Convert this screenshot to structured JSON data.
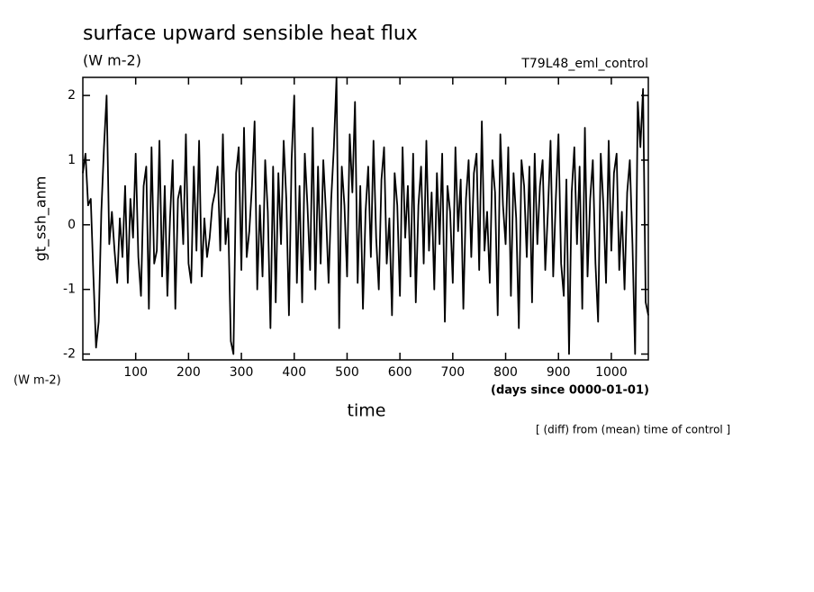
{
  "chart_data": {
    "type": "line",
    "title": "surface upward sensible heat flux",
    "units": "(W m-2)",
    "run_label": "T79L48_eml_control",
    "ylabel": "gt_ssh_anm",
    "yunits": "(W m-2)",
    "xunits": "(days since 0000-01-01)",
    "xlabel": "time",
    "note": "[ (diff) from (mean) time of control ]",
    "xlim": [
      0,
      1070
    ],
    "ylim": [
      -2.09,
      2.28
    ],
    "xticks": [
      100,
      200,
      300,
      400,
      500,
      600,
      700,
      800,
      900,
      1000
    ],
    "yticks": [
      -2,
      -1,
      0,
      1,
      2
    ],
    "grid": false,
    "x": [
      0,
      5,
      10,
      15,
      20,
      25,
      30,
      35,
      40,
      45,
      50,
      55,
      60,
      65,
      70,
      75,
      80,
      85,
      90,
      95,
      100,
      105,
      110,
      115,
      120,
      125,
      130,
      135,
      140,
      145,
      150,
      155,
      160,
      165,
      170,
      175,
      180,
      185,
      190,
      195,
      200,
      205,
      210,
      215,
      220,
      225,
      230,
      235,
      240,
      245,
      250,
      255,
      260,
      265,
      270,
      275,
      280,
      285,
      290,
      295,
      300,
      305,
      310,
      315,
      320,
      325,
      330,
      335,
      340,
      345,
      350,
      355,
      360,
      365,
      370,
      375,
      380,
      385,
      390,
      395,
      400,
      405,
      410,
      415,
      420,
      425,
      430,
      435,
      440,
      445,
      450,
      455,
      460,
      465,
      470,
      475,
      480,
      485,
      490,
      495,
      500,
      505,
      510,
      515,
      520,
      525,
      530,
      535,
      540,
      545,
      550,
      555,
      560,
      565,
      570,
      575,
      580,
      585,
      590,
      595,
      600,
      605,
      610,
      615,
      620,
      625,
      630,
      635,
      640,
      645,
      650,
      655,
      660,
      665,
      670,
      675,
      680,
      685,
      690,
      695,
      700,
      705,
      710,
      715,
      720,
      725,
      730,
      735,
      740,
      745,
      750,
      755,
      760,
      765,
      770,
      775,
      780,
      785,
      790,
      795,
      800,
      805,
      810,
      815,
      820,
      825,
      830,
      835,
      840,
      845,
      850,
      855,
      860,
      865,
      870,
      875,
      880,
      885,
      890,
      895,
      900,
      905,
      910,
      915,
      920,
      925,
      930,
      935,
      940,
      945,
      950,
      955,
      960,
      965,
      970,
      975,
      980,
      985,
      990,
      995,
      1000,
      1005,
      1010,
      1015,
      1020,
      1025,
      1030,
      1035,
      1040,
      1045,
      1050,
      1055,
      1060,
      1065,
      1070
    ],
    "series": [
      {
        "color": "#000000",
        "values": [
          0.8,
          1.1,
          0.3,
          0.4,
          -0.8,
          -1.9,
          -1.5,
          0.2,
          1.2,
          2.0,
          -0.3,
          0.2,
          -0.4,
          -0.9,
          0.1,
          -0.5,
          0.6,
          -0.9,
          0.4,
          -0.2,
          1.1,
          -0.5,
          -1.1,
          0.6,
          0.9,
          -1.3,
          1.2,
          -0.6,
          -0.4,
          1.3,
          -0.8,
          0.6,
          -1.1,
          0.1,
          1.0,
          -1.3,
          0.4,
          0.6,
          -0.3,
          1.4,
          -0.6,
          -0.9,
          0.9,
          -0.4,
          1.3,
          -0.8,
          0.1,
          -0.5,
          -0.2,
          0.3,
          0.5,
          0.9,
          -0.4,
          1.4,
          -0.3,
          0.1,
          -1.8,
          -2.0,
          0.8,
          1.2,
          -0.7,
          1.5,
          -0.5,
          -0.1,
          0.6,
          1.6,
          -1.0,
          0.3,
          -0.8,
          1.0,
          0.2,
          -1.6,
          0.9,
          -1.2,
          0.8,
          -0.3,
          1.3,
          0.4,
          -1.4,
          1.0,
          2.0,
          -0.9,
          0.6,
          -1.2,
          1.1,
          0.3,
          -0.7,
          1.5,
          -1.0,
          0.9,
          -0.6,
          1.0,
          0.2,
          -0.9,
          0.4,
          1.2,
          2.28,
          -1.6,
          0.9,
          0.3,
          -0.8,
          1.4,
          0.5,
          1.9,
          -0.9,
          0.6,
          -1.3,
          0.2,
          0.9,
          -0.5,
          1.3,
          -0.2,
          -1.0,
          0.7,
          1.2,
          -0.6,
          0.1,
          -1.4,
          0.8,
          0.3,
          -1.1,
          1.2,
          -0.2,
          0.6,
          -0.8,
          1.1,
          -1.2,
          0.3,
          0.9,
          -0.6,
          1.3,
          -0.4,
          0.5,
          -1.0,
          0.8,
          -0.3,
          1.1,
          -1.5,
          0.6,
          0.2,
          -0.9,
          1.2,
          -0.1,
          0.7,
          -1.3,
          0.4,
          1.0,
          -0.5,
          0.8,
          1.1,
          -0.7,
          1.6,
          -0.4,
          0.2,
          -0.9,
          1.0,
          0.5,
          -1.4,
          1.4,
          0.3,
          -0.3,
          1.2,
          -1.1,
          0.8,
          0.1,
          -1.6,
          1.0,
          0.6,
          -0.5,
          0.9,
          -1.2,
          1.1,
          -0.3,
          0.6,
          1.0,
          -0.7,
          0.2,
          1.3,
          -0.8,
          0.4,
          1.4,
          -0.6,
          -1.1,
          0.7,
          -2.0,
          0.5,
          1.2,
          -0.3,
          0.9,
          -1.3,
          1.5,
          -0.8,
          0.4,
          1.0,
          -0.6,
          -1.5,
          1.1,
          0.3,
          -0.9,
          1.3,
          -0.4,
          0.8,
          1.1,
          -0.7,
          0.2,
          -1.0,
          0.5,
          1.0,
          -0.3,
          -2.0,
          1.9,
          1.2,
          2.1,
          -1.2,
          -1.4
        ]
      }
    ]
  }
}
